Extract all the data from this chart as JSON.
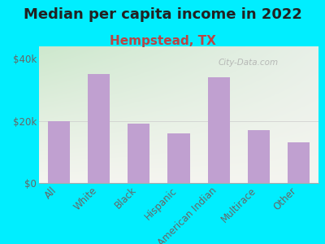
{
  "title": "Median per capita income in 2022",
  "subtitle": "Hempstead, TX",
  "categories": [
    "All",
    "White",
    "Black",
    "Hispanic",
    "American Indian",
    "Multirace",
    "Other"
  ],
  "values": [
    20000,
    35000,
    19000,
    16000,
    34000,
    17000,
    13000
  ],
  "bar_color": "#c0a0d0",
  "title_fontsize": 13,
  "subtitle_fontsize": 11,
  "subtitle_color": "#bb4444",
  "title_color": "#222222",
  "background_outer": "#00eeff",
  "yticks": [
    0,
    20000,
    40000
  ],
  "ytick_labels": [
    "$0",
    "$20k",
    "$40k"
  ],
  "ylim": [
    0,
    44000
  ],
  "watermark": "City-Data.com",
  "tick_label_color": "#666666",
  "tick_fontsize": 8.5
}
